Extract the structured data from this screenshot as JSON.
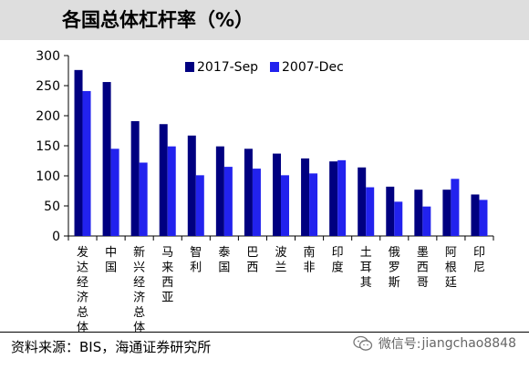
{
  "title": "各国总体杠杆率（%）",
  "source": "资料来源：BIS，海通证券研究所",
  "watermark": {
    "label": "微信号:",
    "handle": "jiangchao8848"
  },
  "colors": {
    "series_2017": "#000080",
    "series_2007": "#2222ee",
    "title_bg": "#dedede"
  },
  "chart_data": {
    "type": "bar",
    "title": "各国总体杠杆率（%）",
    "categories": [
      "发达经济总体",
      "中国",
      "新兴经济总体",
      "马来西亚",
      "智利",
      "泰国",
      "巴西",
      "波兰",
      "南非",
      "印度",
      "土耳其",
      "俄罗斯",
      "墨西哥",
      "阿根廷",
      "印尼"
    ],
    "series": [
      {
        "name": "2017-Sep",
        "color": "#000080",
        "values": [
          276,
          256,
          191,
          186,
          167,
          149,
          145,
          137,
          129,
          124,
          114,
          82,
          77,
          77,
          69
        ]
      },
      {
        "name": "2007-Dec",
        "color": "#2222ee",
        "values": [
          241,
          145,
          122,
          149,
          101,
          115,
          112,
          101,
          104,
          126,
          81,
          57,
          49,
          95,
          60
        ]
      }
    ],
    "ylim": [
      0,
      300
    ],
    "yticks": [
      0,
      50,
      100,
      150,
      200,
      250,
      300
    ],
    "xlabel": "",
    "ylabel": "",
    "legend": "top-center",
    "grid": false
  }
}
